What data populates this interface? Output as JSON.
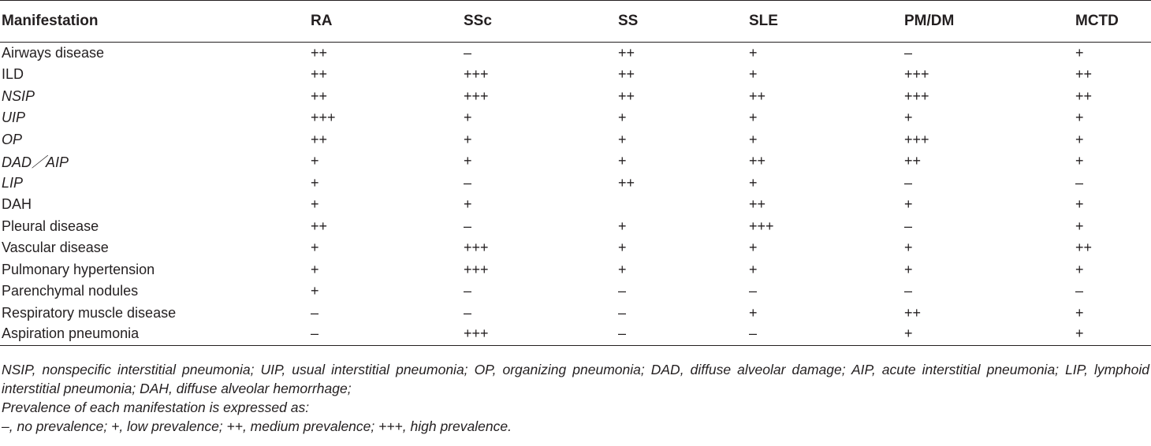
{
  "table": {
    "headers": [
      "Manifestation",
      "RA",
      "SSc",
      "SS",
      "SLE",
      "PM/DM",
      "MCTD"
    ],
    "rows": [
      {
        "label": "Airways disease",
        "italic": false,
        "values": [
          "++",
          "–",
          "++",
          "+",
          "–",
          "+"
        ]
      },
      {
        "label": "ILD",
        "italic": false,
        "values": [
          "++",
          "+++",
          "++",
          "+",
          "+++",
          "++"
        ]
      },
      {
        "label": "NSIP",
        "italic": true,
        "values": [
          "++",
          "+++",
          "++",
          "++",
          "+++",
          "++"
        ]
      },
      {
        "label": "UIP",
        "italic": true,
        "values": [
          "+++",
          "+",
          "+",
          "+",
          "+",
          "+"
        ]
      },
      {
        "label": "OP",
        "italic": true,
        "values": [
          "++",
          "+",
          "+",
          "+",
          "+++",
          "+"
        ]
      },
      {
        "label": "DAD／AIP",
        "italic": true,
        "values": [
          "+",
          "+",
          "+",
          "++",
          "++",
          "+"
        ]
      },
      {
        "label": "LIP",
        "italic": true,
        "values": [
          "+",
          "–",
          "++",
          "+",
          "–",
          "–"
        ]
      },
      {
        "label": "DAH",
        "italic": false,
        "values": [
          "+",
          "+",
          "",
          "++",
          "+",
          "+"
        ]
      },
      {
        "label": "Pleural disease",
        "italic": false,
        "values": [
          "++",
          "–",
          "+",
          "+++",
          "–",
          "+"
        ]
      },
      {
        "label": "Vascular disease",
        "italic": false,
        "values": [
          "+",
          "+++",
          "+",
          "+",
          "+",
          "++"
        ]
      },
      {
        "label": "Pulmonary hypertension",
        "italic": false,
        "values": [
          "+",
          "+++",
          "+",
          "+",
          "+",
          "+"
        ]
      },
      {
        "label": "Parenchymal nodules",
        "italic": false,
        "values": [
          "+",
          "–",
          "–",
          "–",
          "–",
          "–"
        ]
      },
      {
        "label": "Respiratory muscle disease",
        "italic": false,
        "values": [
          "–",
          "–",
          "–",
          "+",
          "++",
          "+"
        ]
      },
      {
        "label": "Aspiration pneumonia",
        "italic": false,
        "values": [
          "–",
          "+++",
          "–",
          "–",
          "+",
          "+"
        ]
      }
    ]
  },
  "notes": {
    "line1": "NSIP, nonspecific interstitial pneumonia; UIP, usual interstitial pneumonia; OP, organizing pneumonia; DAD, diffuse alveolar damage; AIP, acute interstitial pneumonia; LIP, lymphoid",
    "line2": "interstitial pneumonia; DAH, diffuse alveolar hemorrhage;",
    "line3": "Prevalence of each manifestation is expressed as:",
    "line4": "–, no prevalence; +, low prevalence; ++, medium prevalence; +++, high prevalence."
  }
}
